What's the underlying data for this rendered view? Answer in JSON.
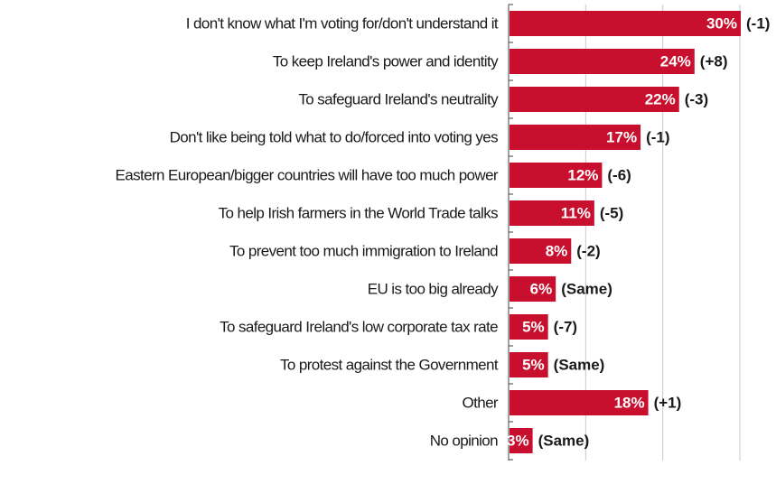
{
  "colors": {
    "bar": "#c8102e",
    "grid": "#c8c8c8",
    "axis": "#444444",
    "text": "#1a1a1a"
  },
  "chart_data": {
    "type": "bar",
    "orientation": "horizontal",
    "xlim": [
      0,
      30
    ],
    "grid": true,
    "categories": [
      "I don't know what I'm voting for/don't understand it",
      "To keep Ireland's power and identity",
      "To safeguard Ireland's neutrality",
      "Don't like being told what to do/forced into voting yes",
      "Eastern European/bigger countries will have too much power",
      "To help Irish farmers in the World Trade talks",
      "To prevent too much immigration to Ireland",
      "EU is too big already",
      "To safeguard Ireland's low corporate tax rate",
      "To protest against the Government",
      "Other",
      "No opinion"
    ],
    "values": [
      30,
      24,
      22,
      17,
      12,
      11,
      8,
      6,
      5,
      5,
      18,
      3
    ],
    "value_labels": [
      "30%",
      "24%",
      "22%",
      "17%",
      "12%",
      "11%",
      "8%",
      "6%",
      "5%",
      "5%",
      "18%",
      "3%"
    ],
    "changes": [
      "(-1)",
      "(+8)",
      "(-3)",
      "(-1)",
      "(-6)",
      "(-5)",
      "(-2)",
      "(Same)",
      "(-7)",
      "(Same)",
      "(+1)",
      "(Same)"
    ]
  }
}
